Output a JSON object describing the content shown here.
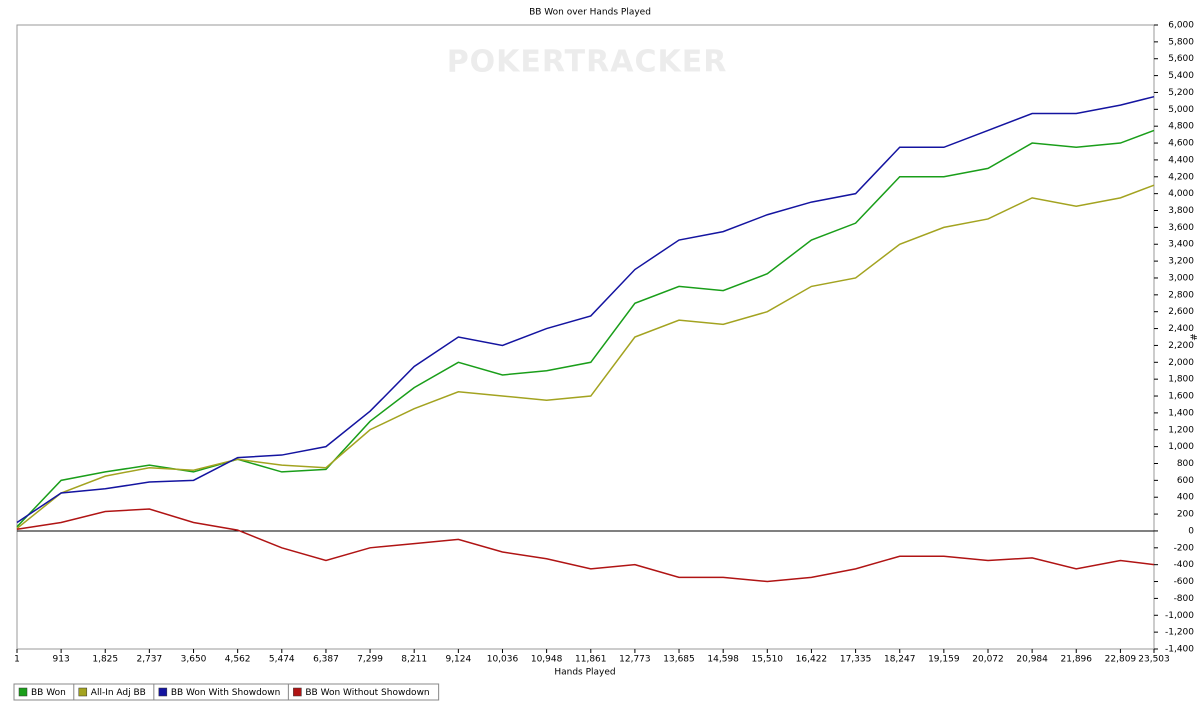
{
  "chart_data": {
    "type": "line",
    "title": "BB Won over Hands Played",
    "watermark": "POKERTRACKER",
    "x_label": "Hands Played",
    "y_label": "#",
    "legend": "bottom-left",
    "grid": false,
    "y_axis_side": "right",
    "x": [
      1,
      913,
      1825,
      2737,
      3650,
      4562,
      5474,
      6387,
      7299,
      8211,
      9124,
      10036,
      10948,
      11861,
      12773,
      13685,
      14598,
      15510,
      16422,
      17335,
      18247,
      19159,
      20072,
      20984,
      21896,
      22809,
      23503
    ],
    "xlim": [
      1,
      23503
    ],
    "xticks": [
      1,
      913,
      {
        "value": 1825,
        "label": "1,825"
      },
      {
        "value": 2737,
        "label": "2,737"
      },
      {
        "value": 3650,
        "label": "3,650"
      },
      {
        "value": 4562,
        "label": "4,562"
      },
      {
        "value": 5474,
        "label": "5,474"
      },
      {
        "value": 6387,
        "label": "6,387"
      },
      {
        "value": 7299,
        "label": "7,299"
      },
      {
        "value": 8211,
        "label": "8,211"
      },
      {
        "value": 9124,
        "label": "9,124"
      },
      {
        "value": 10036,
        "label": "10,036"
      },
      {
        "value": 10948,
        "label": "10,948"
      },
      {
        "value": 11861,
        "label": "11,861"
      },
      {
        "value": 12773,
        "label": "12,773"
      },
      {
        "value": 13685,
        "label": "13,685"
      },
      {
        "value": 14598,
        "label": "14,598"
      },
      {
        "value": 15510,
        "label": "15,510"
      },
      {
        "value": 16422,
        "label": "16,422"
      },
      {
        "value": 17335,
        "label": "17,335"
      },
      {
        "value": 18247,
        "label": "18,247"
      },
      {
        "value": 19159,
        "label": "19,159"
      },
      {
        "value": 20072,
        "label": "20,072"
      },
      {
        "value": 20984,
        "label": "20,984"
      },
      {
        "value": 21896,
        "label": "21,896"
      },
      {
        "value": 22809,
        "label": "22,809"
      },
      {
        "value": 23503,
        "label": "23,503"
      }
    ],
    "ylim": [
      -1400,
      6000
    ],
    "yticks": [
      {
        "value": -1400,
        "label": "-1,400"
      },
      {
        "value": -1200,
        "label": "-1,200"
      },
      {
        "value": -1000,
        "label": "-1,000"
      },
      -800,
      -600,
      -400,
      -200,
      0,
      200,
      400,
      600,
      800,
      {
        "value": 1000,
        "label": "1,000"
      },
      {
        "value": 1200,
        "label": "1,200"
      },
      {
        "value": 1400,
        "label": "1,400"
      },
      {
        "value": 1600,
        "label": "1,600"
      },
      {
        "value": 1800,
        "label": "1,800"
      },
      {
        "value": 2000,
        "label": "2,000"
      },
      {
        "value": 2200,
        "label": "2,200"
      },
      {
        "value": 2400,
        "label": "2,400"
      },
      {
        "value": 2600,
        "label": "2,600"
      },
      {
        "value": 2800,
        "label": "2,800"
      },
      {
        "value": 3000,
        "label": "3,000"
      },
      {
        "value": 3200,
        "label": "3,200"
      },
      {
        "value": 3400,
        "label": "3,400"
      },
      {
        "value": 3600,
        "label": "3,600"
      },
      {
        "value": 3800,
        "label": "3,800"
      },
      {
        "value": 4000,
        "label": "4,000"
      },
      {
        "value": 4200,
        "label": "4,200"
      },
      {
        "value": 4400,
        "label": "4,400"
      },
      {
        "value": 4600,
        "label": "4,600"
      },
      {
        "value": 4800,
        "label": "4,800"
      },
      {
        "value": 5000,
        "label": "5,000"
      },
      {
        "value": 5200,
        "label": "5,200"
      },
      {
        "value": 5400,
        "label": "5,400"
      },
      {
        "value": 5600,
        "label": "5,600"
      },
      {
        "value": 5800,
        "label": "5,800"
      },
      {
        "value": 6000,
        "label": "6,000"
      }
    ],
    "series": [
      {
        "name": "BB Won",
        "color": "#1a9e1a",
        "values": [
          50,
          600,
          700,
          780,
          700,
          850,
          700,
          730,
          1300,
          1700,
          2000,
          1850,
          1900,
          2000,
          2700,
          2900,
          2850,
          3050,
          3450,
          3650,
          4200,
          4200,
          4300,
          4600,
          4550,
          4600,
          4750
        ]
      },
      {
        "name": "All-In Adj BB",
        "color": "#a3a320",
        "values": [
          30,
          450,
          650,
          750,
          720,
          850,
          780,
          750,
          1200,
          1450,
          1650,
          1600,
          1550,
          1600,
          2300,
          2500,
          2450,
          2600,
          2900,
          3000,
          3400,
          3600,
          3700,
          3950,
          3850,
          3950,
          4100
        ]
      },
      {
        "name": "BB Won With Showdown",
        "color": "#1414a0",
        "values": [
          100,
          450,
          500,
          580,
          600,
          870,
          900,
          1000,
          1420,
          1950,
          2300,
          2200,
          2400,
          2550,
          3100,
          3450,
          3550,
          3750,
          3900,
          4000,
          4550,
          4550,
          4750,
          4950,
          4950,
          5050,
          5150
        ]
      },
      {
        "name": "BB Won Without Showdown",
        "color": "#b01414",
        "values": [
          20,
          100,
          230,
          260,
          100,
          10,
          -200,
          -350,
          -200,
          -150,
          -100,
          -250,
          -330,
          -450,
          -400,
          -550,
          -550,
          -600,
          -550,
          -450,
          -300,
          -300,
          -350,
          -320,
          -450,
          -350,
          -400
        ]
      }
    ]
  }
}
